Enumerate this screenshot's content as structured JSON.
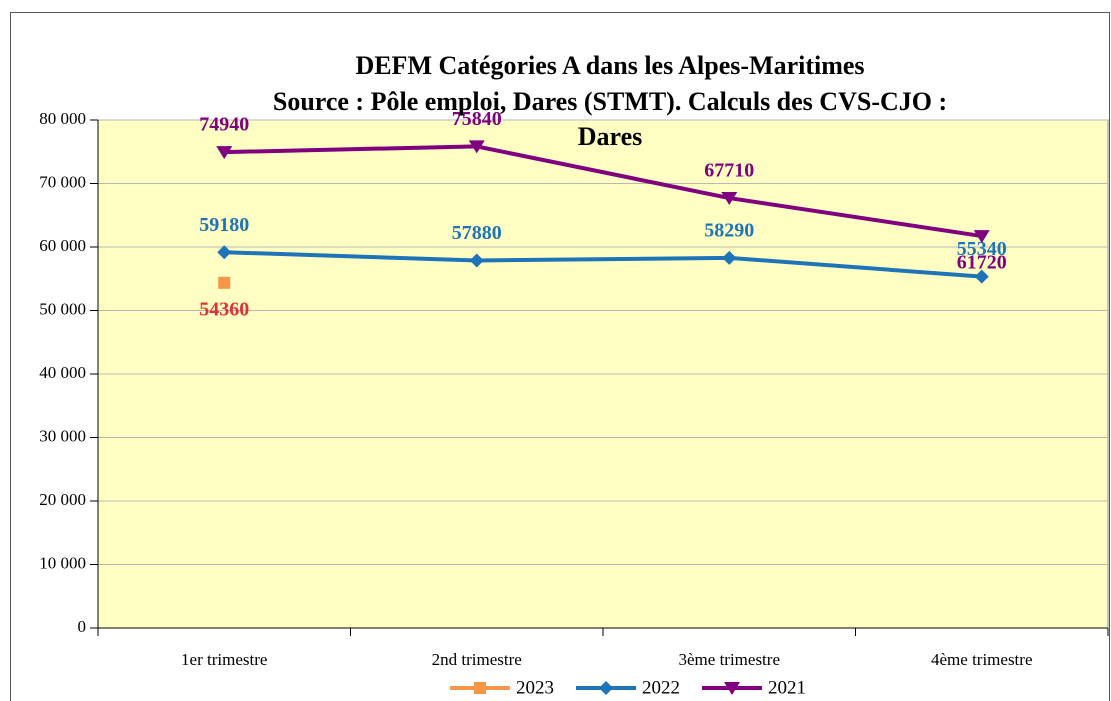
{
  "chart_data": {
    "type": "line",
    "title": [
      "DEFM Catégories A dans les Alpes-Maritimes",
      "Source : Pôle emploi, Dares (STMT). Calculs des CVS-CJO :",
      "Dares"
    ],
    "categories": [
      "1er trimestre",
      "2nd  trimestre",
      "3ème trimestre",
      "4ème trimestre"
    ],
    "series": [
      {
        "name": "2023",
        "color": "#f79646",
        "marker": "square",
        "label_color": "#e0303a",
        "values": [
          54360,
          null,
          null,
          null
        ]
      },
      {
        "name": "2022",
        "color": "#1f74b8",
        "marker": "diamond",
        "label_color": "#1f74b8",
        "values": [
          59180,
          57880,
          58290,
          55340
        ]
      },
      {
        "name": "2021",
        "color": "#800080",
        "marker": "triangle-down",
        "label_color": "#800080",
        "values": [
          74940,
          75840,
          67710,
          61720
        ]
      }
    ],
    "ylim": [
      0,
      80000
    ],
    "yticks": [
      0,
      {
        "value": 10000,
        "label": "10 000"
      },
      {
        "value": 20000,
        "label": "20 000"
      },
      {
        "value": 30000,
        "label": "30 000"
      },
      {
        "value": 40000,
        "label": "40 000"
      },
      {
        "value": 50000,
        "label": "50 000"
      },
      {
        "value": 60000,
        "label": "60 000"
      },
      {
        "value": 70000,
        "label": "70 000"
      },
      {
        "value": 80000,
        "label": "80 000"
      }
    ],
    "grid": true,
    "plot_background": "#ffffc4",
    "legend": "bottom"
  }
}
